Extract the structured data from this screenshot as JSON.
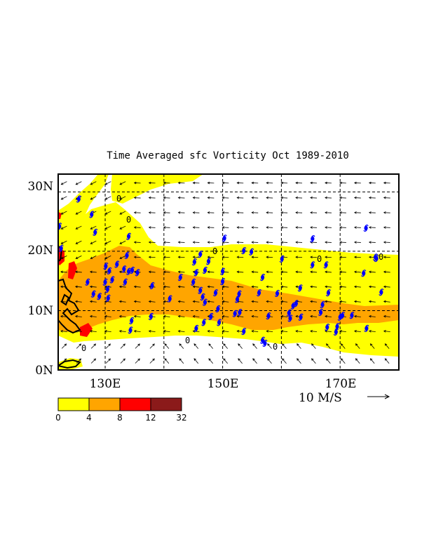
{
  "title": "Time Averaged sfc Vorticity  Oct 1989-2010",
  "lat_labels": [
    "0N",
    "10N",
    "20N",
    "30N"
  ],
  "lon_labels": [
    "130E",
    "150E",
    "170E"
  ],
  "vector_scale_label": "10 M/S",
  "contour_label": "0",
  "colorbar": {
    "labels": [
      "0",
      "4",
      "8",
      "12",
      "32"
    ],
    "colors": [
      "#ffff00",
      "#ffa500",
      "#ff0000",
      "#8b1a1a"
    ]
  },
  "chart_data": {
    "type": "map",
    "lon_range": [
      122,
      180
    ],
    "lat_range": [
      0,
      33
    ],
    "grid": "dashed lines every 10 degrees",
    "vorticity_units_bins": [
      0,
      4,
      8,
      12,
      32
    ],
    "storm_genesis_points": [
      [
        125.5,
        28.8
      ],
      [
        122.2,
        24.2
      ],
      [
        127.7,
        26.2
      ],
      [
        128.3,
        23.2
      ],
      [
        122.5,
        20.5
      ],
      [
        130.1,
        17.5
      ],
      [
        130.7,
        16.7
      ],
      [
        132.0,
        17.8
      ],
      [
        131.2,
        15.2
      ],
      [
        130.0,
        14.8
      ],
      [
        127.0,
        14.8
      ],
      [
        128.0,
        12.8
      ],
      [
        129.0,
        12.4
      ],
      [
        130.5,
        12.1
      ],
      [
        130.4,
        13.6
      ],
      [
        133.2,
        17.0
      ],
      [
        133.4,
        14.8
      ],
      [
        134.0,
        16.6
      ],
      [
        134.6,
        16.8
      ],
      [
        135.5,
        16.4
      ],
      [
        133.7,
        19.3
      ],
      [
        134.0,
        22.5
      ],
      [
        138.0,
        14.2
      ],
      [
        137.8,
        9.0
      ],
      [
        134.5,
        8.3
      ],
      [
        134.3,
        6.7
      ],
      [
        141.0,
        12.0
      ],
      [
        142.8,
        15.6
      ],
      [
        145.2,
        18.2
      ],
      [
        146.2,
        19.5
      ],
      [
        145.5,
        16.4
      ],
      [
        147.0,
        16.8
      ],
      [
        147.6,
        18.3
      ],
      [
        146.2,
        13.4
      ],
      [
        145.0,
        14.8
      ],
      [
        146.6,
        12.3
      ],
      [
        147.0,
        11.4
      ],
      [
        148.8,
        13.0
      ],
      [
        148.0,
        9.0
      ],
      [
        146.8,
        8.0
      ],
      [
        145.5,
        7.0
      ],
      [
        149.2,
        10.3
      ],
      [
        149.4,
        8.0
      ],
      [
        150.0,
        14.9
      ],
      [
        150.0,
        16.6
      ],
      [
        150.3,
        22.2
      ],
      [
        153.6,
        20.1
      ],
      [
        154.9,
        19.9
      ],
      [
        152.8,
        12.8
      ],
      [
        152.5,
        11.9
      ],
      [
        152.1,
        9.5
      ],
      [
        152.9,
        9.7
      ],
      [
        153.6,
        6.5
      ],
      [
        156.2,
        13.0
      ],
      [
        156.8,
        15.6
      ],
      [
        157.8,
        9.1
      ],
      [
        160.1,
        18.7
      ],
      [
        159.3,
        12.9
      ],
      [
        162.5,
        11.2
      ],
      [
        162.0,
        10.8
      ],
      [
        161.3,
        9.6
      ],
      [
        161.5,
        8.7
      ],
      [
        163.3,
        8.9
      ],
      [
        163.2,
        13.8
      ],
      [
        165.3,
        17.7
      ],
      [
        165.3,
        22.1
      ],
      [
        167.6,
        17.7
      ],
      [
        167.0,
        11.0
      ],
      [
        166.7,
        9.7
      ],
      [
        168.0,
        13.0
      ],
      [
        170.0,
        8.9
      ],
      [
        170.4,
        9.2
      ],
      [
        169.5,
        7.3
      ],
      [
        167.8,
        7.2
      ],
      [
        169.3,
        6.4
      ],
      [
        172.0,
        9.2
      ],
      [
        174.0,
        16.3
      ],
      [
        174.4,
        23.9
      ],
      [
        176.2,
        18.8
      ],
      [
        177.0,
        13.1
      ],
      [
        174.5,
        7.0
      ],
      [
        176.0,
        19.0
      ],
      [
        156.8,
        5.0
      ],
      [
        157.2,
        4.5
      ]
    ]
  }
}
